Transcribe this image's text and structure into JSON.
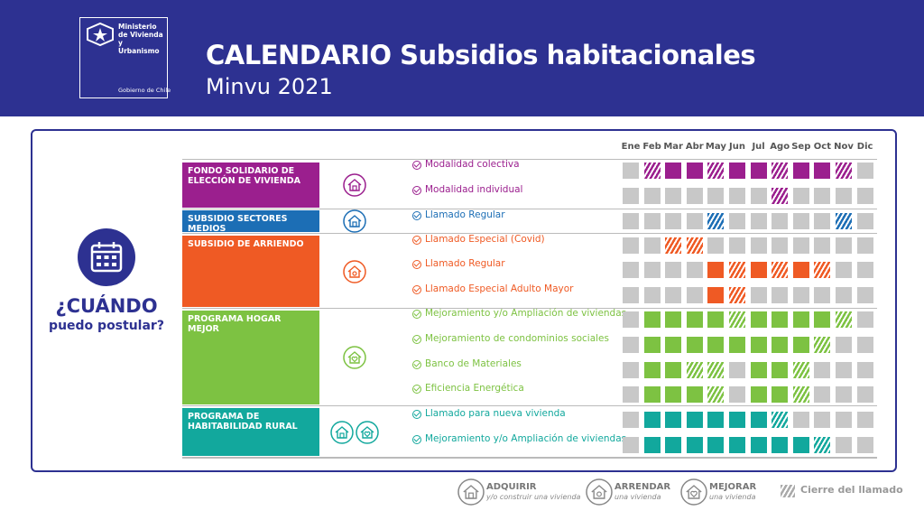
{
  "header": {
    "ministry": "Ministerio de Vivienda y Urbanismo",
    "government": "Gobierno de Chile",
    "title": "CALENDARIO Subsidios habitacionales",
    "subtitle": "Minvu 2021"
  },
  "sidebar": {
    "question": "¿CUÁNDO",
    "question_sub": "puedo postular?"
  },
  "months": [
    "Ene",
    "Feb",
    "Mar",
    "Abr",
    "May",
    "Jun",
    "Jul",
    "Ago",
    "Sep",
    "Oct",
    "Nov",
    "Dic"
  ],
  "programs": [
    {
      "name": "FONDO SOLIDARIO DE ELECCIÓN DE VIVIENDA",
      "color": "#9b1f8e",
      "calls": [
        {
          "label": "Modalidad colectiva",
          "cells": [
            0,
            2,
            1,
            1,
            2,
            1,
            1,
            2,
            1,
            1,
            2,
            0
          ]
        },
        {
          "label": "Modalidad individual",
          "cells": [
            0,
            0,
            0,
            0,
            0,
            0,
            0,
            2,
            0,
            0,
            0,
            0
          ]
        }
      ]
    },
    {
      "name": "SUBSIDIO SECTORES MEDIOS",
      "color": "#1c6eb5",
      "calls": [
        {
          "label": "Llamado Regular",
          "cells": [
            0,
            0,
            0,
            0,
            2,
            0,
            0,
            0,
            0,
            0,
            2,
            0
          ]
        }
      ]
    },
    {
      "name": "SUBSIDIO DE ARRIENDO",
      "color": "#ef5a24",
      "calls": [
        {
          "label": "Llamado Especial (Covid)",
          "cells": [
            0,
            0,
            2,
            2,
            0,
            0,
            0,
            0,
            0,
            0,
            0,
            0
          ]
        },
        {
          "label": "Llamado Regular",
          "cells": [
            0,
            0,
            0,
            0,
            1,
            2,
            1,
            2,
            1,
            2,
            0,
            0
          ]
        },
        {
          "label": "Llamado Especial Adulto Mayor",
          "cells": [
            0,
            0,
            0,
            0,
            1,
            2,
            0,
            0,
            0,
            0,
            0,
            0
          ]
        }
      ]
    },
    {
      "name": "PROGRAMA HOGAR MEJOR",
      "color": "#7dc242",
      "calls": [
        {
          "label": "Mejoramiento y/o Ampliación de viviendas",
          "cells": [
            0,
            1,
            1,
            1,
            1,
            2,
            1,
            1,
            1,
            1,
            2,
            0
          ]
        },
        {
          "label": "Mejoramiento de condominios sociales",
          "cells": [
            0,
            1,
            1,
            1,
            1,
            1,
            1,
            1,
            1,
            2,
            0,
            0
          ]
        },
        {
          "label": "Banco de Materiales",
          "cells": [
            0,
            1,
            1,
            2,
            2,
            0,
            1,
            1,
            2,
            0,
            0,
            0
          ]
        },
        {
          "label": "Eficiencia Energética",
          "cells": [
            0,
            1,
            1,
            1,
            2,
            0,
            1,
            1,
            2,
            0,
            0,
            0
          ]
        }
      ]
    },
    {
      "name": "PROGRAMA DE HABITABILIDAD RURAL",
      "color": "#12a89d",
      "calls": [
        {
          "label": "Llamado para nueva vivienda",
          "cells": [
            0,
            1,
            1,
            1,
            1,
            1,
            1,
            2,
            0,
            0,
            0,
            0
          ]
        },
        {
          "label": "Mejoramiento y/o Ampliación de viviendas",
          "cells": [
            0,
            1,
            1,
            1,
            1,
            1,
            1,
            1,
            1,
            2,
            0,
            0
          ]
        }
      ]
    }
  ],
  "legend": [
    {
      "label": "ADQUIRIR",
      "sub": "y/o construir una vivienda"
    },
    {
      "label": "ARRENDAR",
      "sub": "una vivienda"
    },
    {
      "label": "MEJORAR",
      "sub": "una vivienda"
    },
    {
      "label": "Cierre del llamado"
    }
  ]
}
